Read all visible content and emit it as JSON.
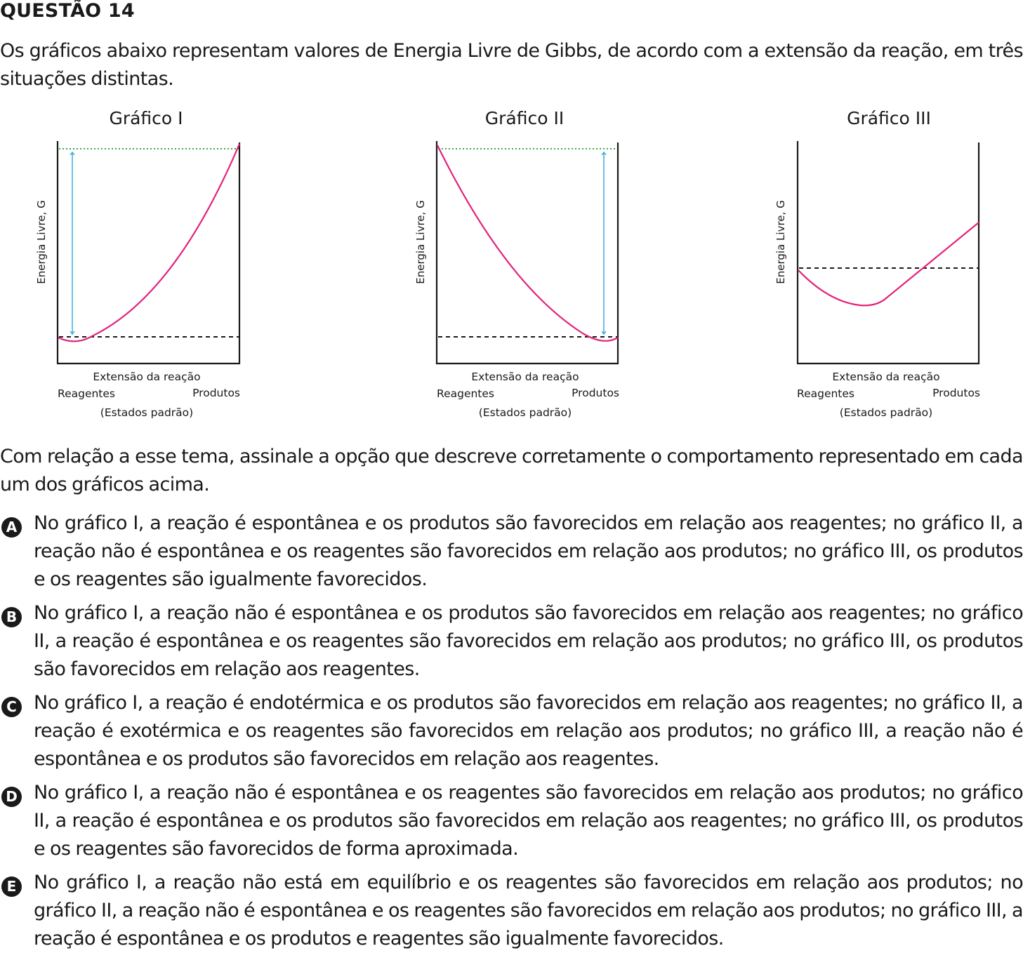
{
  "question": {
    "title": "QUESTÃO 14",
    "intro": "Os gráficos abaixo representam valores de Energia Livre de Gibbs, de acordo com a extensão da reação, em três situações distintas.",
    "prompt": "Com relação a esse tema, assinale a opção que descreve corretamente o comportamento representado em cada um dos gráficos acima."
  },
  "options": [
    {
      "letter": "A",
      "text": "No gráfico I, a reação é espontânea e os produtos são favorecidos em relação aos reagentes; no gráfico II, a reação não é espontânea e os reagentes são favorecidos em relação aos produtos; no gráfico III, os produtos e os reagentes são igualmente favorecidos."
    },
    {
      "letter": "B",
      "text": "No gráfico I, a reação não é espontânea e os produtos são favorecidos em relação aos reagentes; no gráfico II, a reação é espontânea e os reagentes são favorecidos em relação aos produtos; no gráfico III, os produtos são favorecidos em relação aos reagentes."
    },
    {
      "letter": "C",
      "text": "No gráfico I, a reação é endotérmica e os produtos são favorecidos em relação aos reagentes; no gráfico II, a reação é exotérmica e os reagentes são favorecidos em relação aos produtos; no gráfico III, a reação não é espontânea e os produtos são favorecidos em relação aos reagentes."
    },
    {
      "letter": "D",
      "text": "No gráfico I, a reação não é espontânea e os reagentes são favorecidos em relação aos produtos; no gráfico II, a reação é espontânea e os produtos são favorecidos em relação aos reagentes; no gráfico III, os produtos e os reagentes são favorecidos de forma aproximada."
    },
    {
      "letter": "E",
      "text": "No gráfico I, a reação não está em equilíbrio e os reagentes são favorecidos em relação aos produtos; no gráfico II, a reação não é espontânea e os reagentes são favorecidos em relação aos produtos; no gráfico III, a reação é espontânea e os produtos e reagentes são igualmente favorecidos."
    }
  ],
  "graphs": [
    {
      "title": "Gráfico I",
      "ylabel": "Energia Livre, G",
      "xlabel": "Extensão da reação",
      "left_label": "Reagentes",
      "right_label": "Produtos",
      "sub_label": "(Estados padrão)"
    },
    {
      "title": "Gráfico II",
      "ylabel": "Energia Livre, G",
      "xlabel": "Extensão da reação",
      "left_label": "Reagentes",
      "right_label": "Produtos",
      "sub_label": "(Estados padrão)"
    },
    {
      "title": "Gráfico III",
      "ylabel": "Energia Livre, G",
      "xlabel": "Extensão da reação",
      "left_label": "Reagentes",
      "right_label": "Produtos",
      "sub_label": "(Estados padrão)"
    }
  ],
  "colors": {
    "curve": "#e2237b",
    "arrow": "#2aa7d6",
    "dotted": "#3aa845",
    "dashed": "#1a1a1a",
    "axis": "#1a1a1a"
  }
}
